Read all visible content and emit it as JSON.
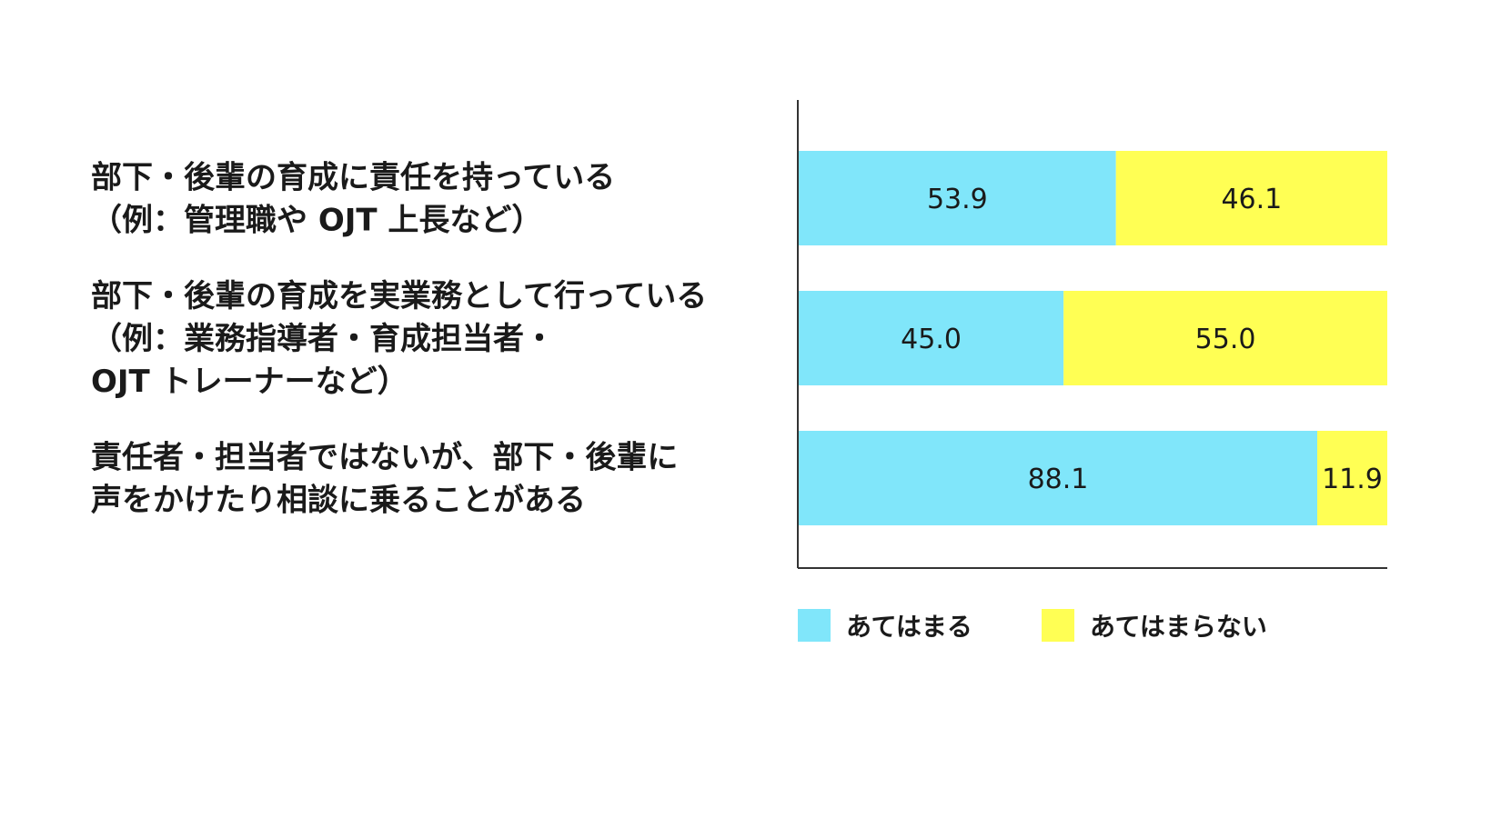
{
  "chart_data": {
    "type": "bar",
    "orientation": "horizontal",
    "stacked": true,
    "categories": [
      [
        "部下・後輩の育成に責任を持っている",
        "（例：管理職や OJT 上長など）"
      ],
      [
        "部下・後輩の育成を実業務として行っている",
        "（例：業務指導者・育成担当者・",
        " OJT トレーナーなど）"
      ],
      [
        "責任者・担当者ではないが、部下・後輩に",
        "声をかけたり相談に乗ることがある"
      ]
    ],
    "series": [
      {
        "name": "あてはまる",
        "values": [
          53.9,
          45.0,
          88.1
        ],
        "labels": [
          "53.9",
          "45.0",
          "88.1"
        ],
        "color": "#80e6fa"
      },
      {
        "name": "あてはまらない",
        "values": [
          46.1,
          55.0,
          11.9
        ],
        "labels": [
          "46.1",
          "55.0",
          "11.9"
        ],
        "color": "#ffff54"
      }
    ],
    "xlim": [
      0,
      100
    ],
    "grid": false,
    "legend_position": "bottom"
  }
}
